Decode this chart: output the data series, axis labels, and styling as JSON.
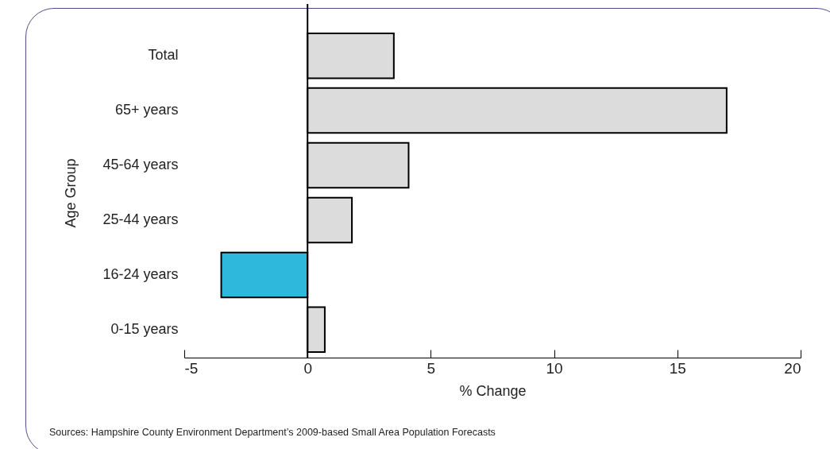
{
  "chart_data": {
    "type": "bar",
    "orientation": "horizontal",
    "xlabel": "% Change",
    "ylabel": "Age Group",
    "categories": [
      "Total",
      "65+ years",
      "45-64 years",
      "25-44 years",
      "16-24 years",
      "0-15 years"
    ],
    "values": [
      3.5,
      17.0,
      4.1,
      1.8,
      -3.5,
      0.7
    ],
    "colors": [
      "#dcdcdc",
      "#dcdcdc",
      "#dcdcdc",
      "#dcdcdc",
      "#2eb8dc",
      "#dcdcdc"
    ],
    "xlim": [
      -5,
      20
    ],
    "xticks": [
      -5,
      0,
      5,
      10,
      15,
      20
    ],
    "grid": false,
    "ref_lines": [
      {
        "axis": "x",
        "value": 0,
        "color": "#000000"
      }
    ],
    "annotations": [
      "Sources: Hampshire County Environment Department’s 2009-based Small Area Population Forecasts"
    ]
  }
}
